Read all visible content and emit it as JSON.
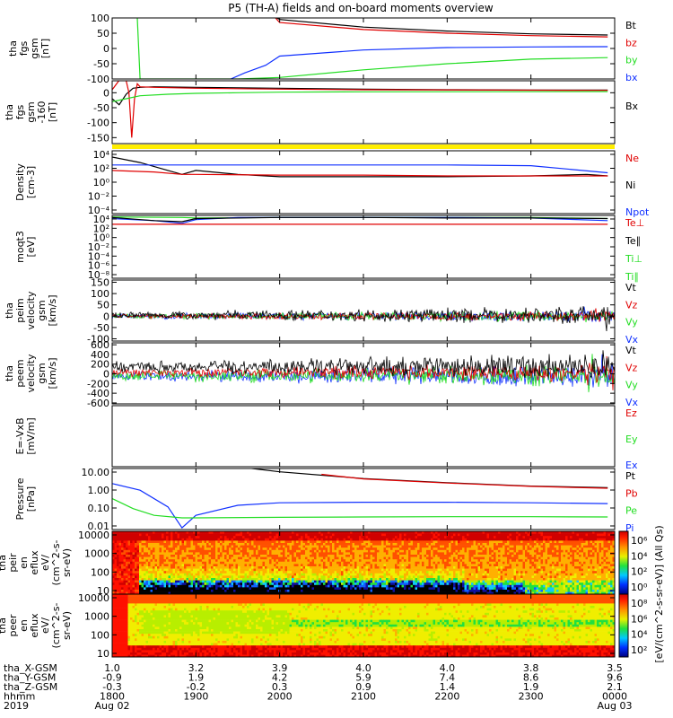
{
  "title": "P5 (TH-A) fields and on-board moments overview",
  "colors": {
    "black": "#000000",
    "red": "#e00000",
    "green": "#22dd22",
    "blue": "#1030ff",
    "yellow": "#ffee00"
  },
  "chart_data": [
    {
      "type": "line",
      "id": "fgs-gsm",
      "ylabel": [
        "tha",
        "fgs",
        "gsm",
        "[nT]"
      ],
      "ylim": [
        -100,
        100
      ],
      "yticks": [
        100,
        50,
        0,
        -50,
        -100
      ],
      "legend": [
        {
          "label": "Bt",
          "color": "black"
        },
        {
          "label": "bz",
          "color": "red"
        },
        {
          "label": "by",
          "color": "green"
        },
        {
          "label": "bx",
          "color": "blue"
        }
      ],
      "series": [
        {
          "name": "Bt",
          "color": "black",
          "x": [
            1950,
            2000,
            2100,
            2200,
            2300,
            2355
          ],
          "y": [
            120,
            95,
            70,
            57,
            48,
            44
          ]
        },
        {
          "name": "bz",
          "color": "red",
          "x": [
            1955,
            2000,
            2100,
            2200,
            2300,
            2355
          ],
          "y": [
            110,
            85,
            62,
            50,
            42,
            38
          ]
        },
        {
          "name": "by",
          "color": "green",
          "x": [
            1818,
            1820,
            1830,
            1930,
            2000,
            2100,
            2200,
            2300,
            2355
          ],
          "y": [
            100,
            -100,
            -100,
            -100,
            -95,
            -70,
            -50,
            -35,
            -30
          ]
        },
        {
          "name": "bx",
          "color": "blue",
          "x": [
            1925,
            1935,
            1950,
            2000,
            2100,
            2200,
            2300,
            2355
          ],
          "y": [
            -100,
            -80,
            -55,
            -25,
            -5,
            3,
            5,
            6
          ]
        }
      ]
    },
    {
      "type": "line",
      "id": "fgs-gse",
      "ylabel": [
        "tha",
        "fgs",
        "gsm",
        "-160",
        "[nT]"
      ],
      "ylim": [
        -170,
        40
      ],
      "yticks": [
        0,
        -50,
        -100,
        -150
      ],
      "legend": [
        {
          "label": "Bx",
          "color": "black"
        }
      ],
      "series": [
        {
          "name": "Bx",
          "color": "black",
          "x": [
            1800,
            1805,
            1810,
            1815,
            1820,
            1830,
            1900,
            2000,
            2100,
            2200,
            2300,
            2355
          ],
          "y": [
            -20,
            -40,
            -5,
            15,
            18,
            20,
            18,
            15,
            12,
            10,
            9,
            9
          ]
        },
        {
          "name": "bz-red",
          "color": "red",
          "x": [
            1800,
            1808,
            1810,
            1812,
            1814,
            1816,
            1818,
            1820,
            1830,
            1900,
            2000,
            2100,
            2355
          ],
          "y": [
            10,
            60,
            40,
            0,
            -150,
            -20,
            30,
            20,
            18,
            15,
            12,
            10,
            8
          ]
        },
        {
          "name": "by-green",
          "color": "green",
          "x": [
            1800,
            1810,
            1820,
            1840,
            1900,
            1930,
            2000,
            2100,
            2355
          ],
          "y": [
            -30,
            -20,
            -10,
            -5,
            -2,
            0,
            2,
            3,
            4
          ]
        }
      ]
    },
    {
      "type": "line",
      "id": "density",
      "ylabel": [
        "Density",
        "[cm-3]"
      ],
      "yscale": "log",
      "ylim": [
        -4,
        4
      ],
      "ytick_labels": [
        "10⁴",
        "10²",
        "10⁰",
        "10⁻²",
        "10⁻⁴"
      ],
      "legend": [
        {
          "label": "Ne",
          "color": "red"
        },
        {
          "label": "Ni",
          "color": "black"
        },
        {
          "label": "Npot",
          "color": "blue"
        }
      ],
      "series": [
        {
          "name": "Ni",
          "color": "black",
          "x": [
            1800,
            1820,
            1840,
            1850,
            1900,
            1930,
            2000,
            2100,
            2200,
            2300,
            2340,
            2355
          ],
          "y": [
            3.2,
            2.5,
            1.5,
            1.0,
            1.5,
            1.0,
            0.7,
            0.7,
            0.7,
            0.8,
            1.0,
            0.8
          ]
        },
        {
          "name": "Npot",
          "color": "blue",
          "x": [
            1800,
            1900,
            2000,
            2100,
            2200,
            2300,
            2355
          ],
          "y": [
            2.2,
            2.2,
            2.2,
            2.2,
            2.2,
            2.1,
            1.2
          ]
        },
        {
          "name": "Ne",
          "color": "red",
          "x": [
            1800,
            1830,
            1850,
            1900,
            2000,
            2100,
            2200,
            2300,
            2355
          ],
          "y": [
            1.5,
            1.3,
            1.0,
            1.0,
            0.9,
            0.9,
            0.8,
            0.8,
            0.8
          ]
        }
      ]
    },
    {
      "type": "line",
      "id": "moments-temp",
      "ylabel": [
        "moqt3",
        "[eV]"
      ],
      "yscale": "log",
      "ylim": [
        -8,
        4
      ],
      "ytick_labels": [
        "10⁴",
        "10²",
        "10⁰",
        "10⁻²",
        "10⁻⁴",
        "10⁻⁶",
        "10⁻⁸"
      ],
      "legend": [
        {
          "label": "Te⊥",
          "color": "red"
        },
        {
          "label": "Te∥",
          "color": "black"
        },
        {
          "label": "Ti⊥",
          "color": "green"
        },
        {
          "label": "Ti∥",
          "color": "green"
        }
      ],
      "series": [
        {
          "name": "Ti⊥",
          "color": "green",
          "x": [
            1800,
            1850,
            1900,
            2000,
            2100,
            2200,
            2300,
            2355
          ],
          "y": [
            3.7,
            3.6,
            3.5,
            3.6,
            3.6,
            3.6,
            3.6,
            3.4
          ]
        },
        {
          "name": "Npot-blue",
          "color": "blue",
          "x": [
            1800,
            1830,
            1850,
            1900,
            1930,
            2000,
            2100,
            2200,
            2300,
            2355
          ],
          "y": [
            3.4,
            3.0,
            2.5,
            3.2,
            3.6,
            3.6,
            3.6,
            3.6,
            3.5,
            3.0
          ]
        },
        {
          "name": "Te∥",
          "color": "black",
          "x": [
            1800,
            1830,
            1850,
            1900,
            2000,
            2100,
            2200,
            2300,
            2355
          ],
          "y": [
            3.6,
            3.0,
            2.8,
            3.4,
            3.6,
            3.6,
            3.5,
            3.5,
            3.4
          ]
        },
        {
          "name": "Te⊥",
          "color": "red",
          "x": [
            1800,
            1900,
            2000,
            2100,
            2200,
            2300,
            2355
          ],
          "y": [
            2.3,
            2.3,
            2.3,
            2.3,
            2.3,
            2.3,
            2.3
          ]
        }
      ]
    },
    {
      "type": "line",
      "id": "peim-velocity",
      "ylabel": [
        "tha",
        "peim",
        "velocity",
        "gsm",
        "[km/s]"
      ],
      "ylim": [
        -110,
        160
      ],
      "yticks": [
        150,
        100,
        50,
        0,
        -50,
        -100
      ],
      "ytick_labels": [
        "150",
        "100",
        "50",
        "0",
        "-50",
        "-100"
      ],
      "legend": [
        {
          "label": "Vt",
          "color": "black"
        },
        {
          "label": "Vz",
          "color": "red"
        },
        {
          "label": "Vy",
          "color": "green"
        },
        {
          "label": "Vx",
          "color": "blue"
        }
      ],
      "noise": [
        {
          "color": "blue",
          "base": 0,
          "amp": 12
        },
        {
          "color": "green",
          "base": 0,
          "amp": 12
        },
        {
          "color": "red",
          "base": 0,
          "amp": 10
        },
        {
          "color": "black",
          "base": 5,
          "amp": 18
        }
      ]
    },
    {
      "type": "line",
      "id": "peem-velocity",
      "ylabel": [
        "tha",
        "peem",
        "velocity",
        "gsm",
        "[km/s]"
      ],
      "ylim": [
        -620,
        640
      ],
      "yticks": [
        600,
        400,
        200,
        0,
        -200,
        -400,
        -600
      ],
      "legend": [
        {
          "label": "Vt",
          "color": "black"
        },
        {
          "label": "Vz",
          "color": "red"
        },
        {
          "label": "Vy",
          "color": "green"
        },
        {
          "label": "Vx",
          "color": "blue"
        }
      ],
      "noise": [
        {
          "color": "blue",
          "base": -50,
          "amp": 110
        },
        {
          "color": "green",
          "base": -40,
          "amp": 110
        },
        {
          "color": "red",
          "base": 30,
          "amp": 90
        },
        {
          "color": "black",
          "base": 150,
          "amp": 120
        }
      ]
    },
    {
      "type": "line",
      "id": "efield",
      "ylabel": [
        "E=-VxB",
        "[mV/m]"
      ],
      "yticks": [],
      "legend": [
        {
          "label": "Ez",
          "color": "red"
        },
        {
          "label": "Ey",
          "color": "green"
        },
        {
          "label": "Ex",
          "color": "blue"
        }
      ],
      "series": []
    },
    {
      "type": "line",
      "id": "pressure",
      "ylabel": [
        "Pressure",
        "[nPa]"
      ],
      "yscale": "log",
      "ylim": [
        -2.35,
        1.3
      ],
      "ytick_labels": [
        "10.00",
        "1.00",
        "0.10",
        "0.01"
      ],
      "legend": [
        {
          "label": "Pt",
          "color": "black"
        },
        {
          "label": "Pb",
          "color": "red"
        },
        {
          "label": "Pe",
          "color": "green"
        },
        {
          "label": "Pi",
          "color": "blue"
        }
      ],
      "series": [
        {
          "name": "Pt",
          "color": "black",
          "x": [
            1930,
            2000,
            2100,
            2200,
            2300,
            2355
          ],
          "y": [
            1.4,
            1.1,
            0.7,
            0.45,
            0.25,
            0.15
          ]
        },
        {
          "name": "Pb",
          "color": "red",
          "x": [
            2030,
            2100,
            2200,
            2300,
            2355
          ],
          "y": [
            0.95,
            0.68,
            0.43,
            0.23,
            0.12
          ]
        },
        {
          "name": "Pi",
          "color": "blue",
          "x": [
            1800,
            1820,
            1840,
            1850,
            1900,
            1930,
            2000,
            2100,
            2200,
            2300,
            2355
          ],
          "y": [
            0.4,
            0.0,
            -1.0,
            -2.25,
            -1.5,
            -0.9,
            -0.75,
            -0.72,
            -0.72,
            -0.75,
            -0.8
          ]
        },
        {
          "name": "Pe",
          "color": "green",
          "x": [
            1800,
            1815,
            1830,
            1850,
            1900,
            2000,
            2100,
            2200,
            2300,
            2355
          ],
          "y": [
            -0.5,
            -1.1,
            -1.5,
            -1.65,
            -1.65,
            -1.62,
            -1.6,
            -1.58,
            -1.58,
            -1.6
          ]
        }
      ]
    },
    {
      "type": "heatmap",
      "id": "peir-eflux",
      "ylabel": [
        "tha",
        "peir",
        "en",
        "eflux",
        "eV/",
        "(cm^2-s-",
        "sr-eV)"
      ],
      "yscale": "log",
      "ylim": [
        1,
        4.3
      ],
      "ytick_labels": [
        "10000",
        "1000",
        "100",
        "10"
      ],
      "colorbar": {
        "tick_labels": [
          "10⁶",
          "10⁴",
          "10²",
          "10⁰"
        ],
        "label": "[eV/(cm^2-s-sr-eV)] (All Qs)"
      }
    },
    {
      "type": "heatmap",
      "id": "peer-eflux",
      "ylabel": [
        "tha",
        "peer",
        "en",
        "eflux",
        "eV/",
        "(cm^2-s-",
        "sr-eV)"
      ],
      "yscale": "log",
      "ylim": [
        0.8,
        4.3
      ],
      "ytick_labels": [
        "10000",
        "1000",
        "100",
        "10"
      ],
      "colorbar": {
        "tick_labels": [
          "10⁸",
          "10⁶",
          "10⁴",
          "10²"
        ],
        "label": "[eV/(cm^2-s-sr-eV)]"
      }
    }
  ],
  "xaxis": {
    "rows": [
      {
        "label": "tha_X-GSM",
        "values": [
          "1.0",
          "3.2",
          "3.9",
          "4.0",
          "4.0",
          "3.8",
          "3.5"
        ]
      },
      {
        "label": "tha_Y-GSM",
        "values": [
          "-0.9",
          "1.9",
          "4.2",
          "5.9",
          "7.4",
          "8.6",
          "9.6"
        ]
      },
      {
        "label": "tha_Z-GSM",
        "values": [
          "-0.3",
          "-0.2",
          "0.3",
          "0.9",
          "1.4",
          "1.9",
          "2.1"
        ]
      },
      {
        "label": "hhmm",
        "values": [
          "1800",
          "1900",
          "2000",
          "2100",
          "2200",
          "2300",
          "0000"
        ]
      },
      {
        "label": "2019",
        "values": [
          "Aug 02",
          "",
          "",
          "",
          "",
          "",
          "Aug 03"
        ]
      }
    ]
  }
}
